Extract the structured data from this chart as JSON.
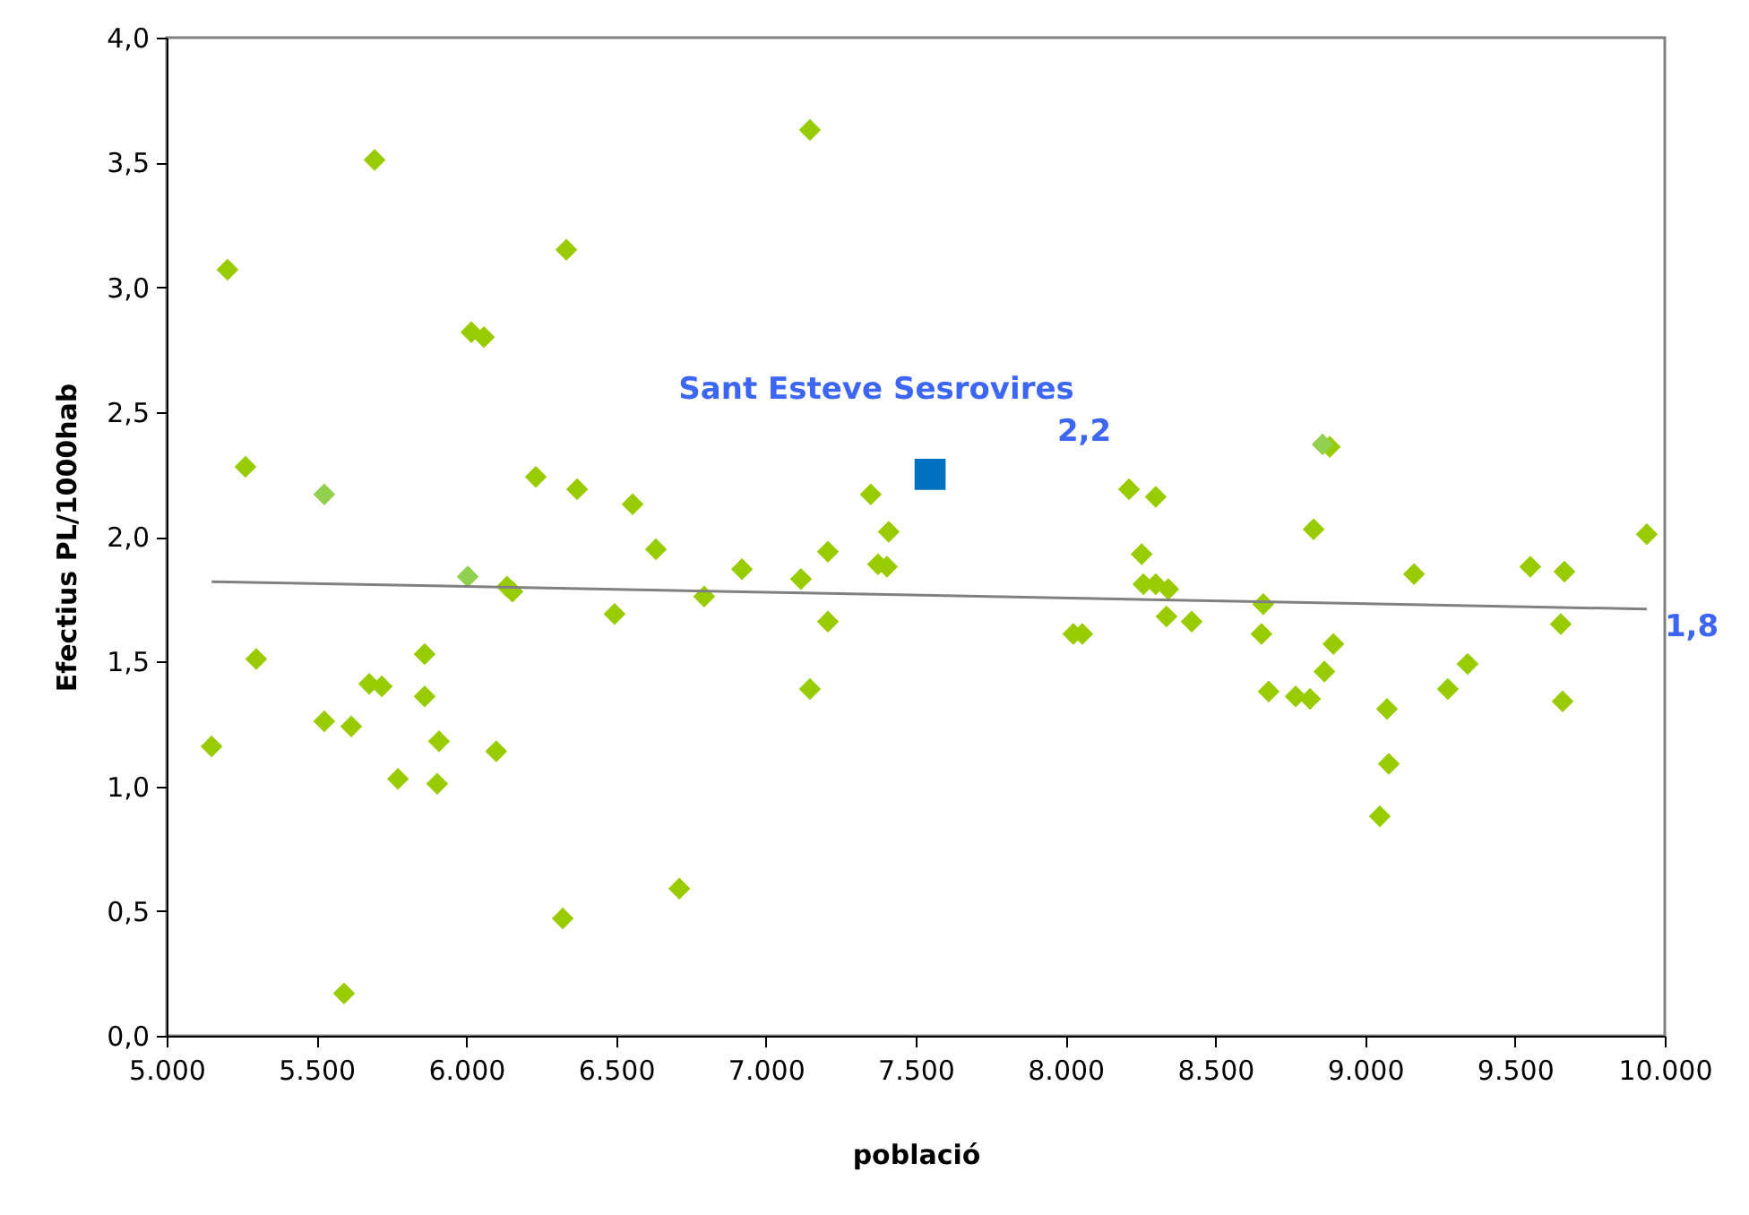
{
  "chart_data": {
    "type": "scatter",
    "xlabel": "població",
    "ylabel": "Efectius PL/1000hab",
    "xlim": [
      5000,
      10000
    ],
    "ylim": [
      0,
      4
    ],
    "xticks": [
      {
        "value": 5000,
        "label": "5.000"
      },
      {
        "value": 5500,
        "label": "5.500"
      },
      {
        "value": 6000,
        "label": "6.000"
      },
      {
        "value": 6500,
        "label": "6.500"
      },
      {
        "value": 7000,
        "label": "7.000"
      },
      {
        "value": 7500,
        "label": "7.500"
      },
      {
        "value": 8000,
        "label": "8.000"
      },
      {
        "value": 8500,
        "label": "8.500"
      },
      {
        "value": 9000,
        "label": "9.000"
      },
      {
        "value": 9500,
        "label": "9.500"
      },
      {
        "value": 10000,
        "label": "10.000"
      }
    ],
    "yticks": [
      {
        "value": 0,
        "label": "0,0"
      },
      {
        "value": 0.5,
        "label": "0,5"
      },
      {
        "value": 1,
        "label": "1,0"
      },
      {
        "value": 1.5,
        "label": "1,5"
      },
      {
        "value": 2,
        "label": "2,0"
      },
      {
        "value": 2.5,
        "label": "2,5"
      },
      {
        "value": 3,
        "label": "3,0"
      },
      {
        "value": 3.5,
        "label": "3,5"
      },
      {
        "value": 4,
        "label": "4,0"
      }
    ],
    "annotations": [
      "2,2",
      {
        "text": "1,8",
        "x": 9940,
        "y": 1.71
      }
    ],
    "series": [
      {
        "marker": "diamond",
        "color": "#99cc00",
        "x": [
          5150,
          5203,
          5263,
          5299,
          5526,
          5592,
          5616,
          5676,
          5694,
          5718,
          5772,
          5861,
          5861,
          5909,
          5903,
          6017,
          6059,
          6100,
          6136,
          6154,
          6232,
          6322,
          6334,
          6370,
          6495,
          6555,
          6633,
          6711,
          6794,
          6920,
          7117,
          7147,
          7147,
          7207,
          7207,
          7350,
          7374,
          7404,
          7410,
          8026,
          8056,
          8212,
          8254,
          8260,
          8301,
          8301,
          8337,
          8343,
          8421,
          8660,
          8654,
          8678,
          8768,
          8816,
          8828,
          8882,
          8864,
          8894,
          9049,
          9073,
          9079,
          9163,
          9276,
          9342,
          9551,
          9665,
          9653,
          9659,
          9940
        ],
        "values": [
          1.16,
          3.07,
          2.28,
          1.51,
          1.26,
          0.17,
          1.24,
          1.41,
          3.51,
          1.4,
          1.03,
          1.53,
          1.36,
          1.18,
          1.01,
          2.82,
          2.8,
          1.14,
          1.8,
          1.78,
          2.24,
          0.47,
          3.15,
          2.19,
          1.69,
          2.13,
          1.95,
          0.59,
          1.76,
          1.87,
          1.83,
          3.63,
          1.39,
          1.66,
          1.94,
          2.17,
          1.89,
          1.88,
          2.02,
          1.61,
          1.61,
          2.19,
          1.93,
          1.81,
          2.16,
          1.81,
          1.68,
          1.79,
          1.66,
          1.73,
          1.61,
          1.38,
          1.36,
          1.35,
          2.03,
          2.36,
          1.46,
          1.57,
          0.88,
          1.31,
          1.09,
          1.85,
          1.39,
          1.49,
          1.88,
          1.86,
          1.65,
          1.34,
          2.01
        ]
      },
      {
        "marker": "diamond",
        "color": "#92d050",
        "x": [
          5526,
          6005,
          8858
        ],
        "values": [
          2.17,
          1.84,
          2.37
        ]
      },
      {
        "type": "line",
        "color": "#808080",
        "x": [
          5150,
          9940
        ],
        "values": [
          1.82,
          1.71
        ]
      },
      {
        "marker": "square",
        "name": "Sant Esteve Sesrovires",
        "color": "#0070c0",
        "x": [
          7548
        ],
        "values": [
          2.25
        ]
      }
    ]
  }
}
